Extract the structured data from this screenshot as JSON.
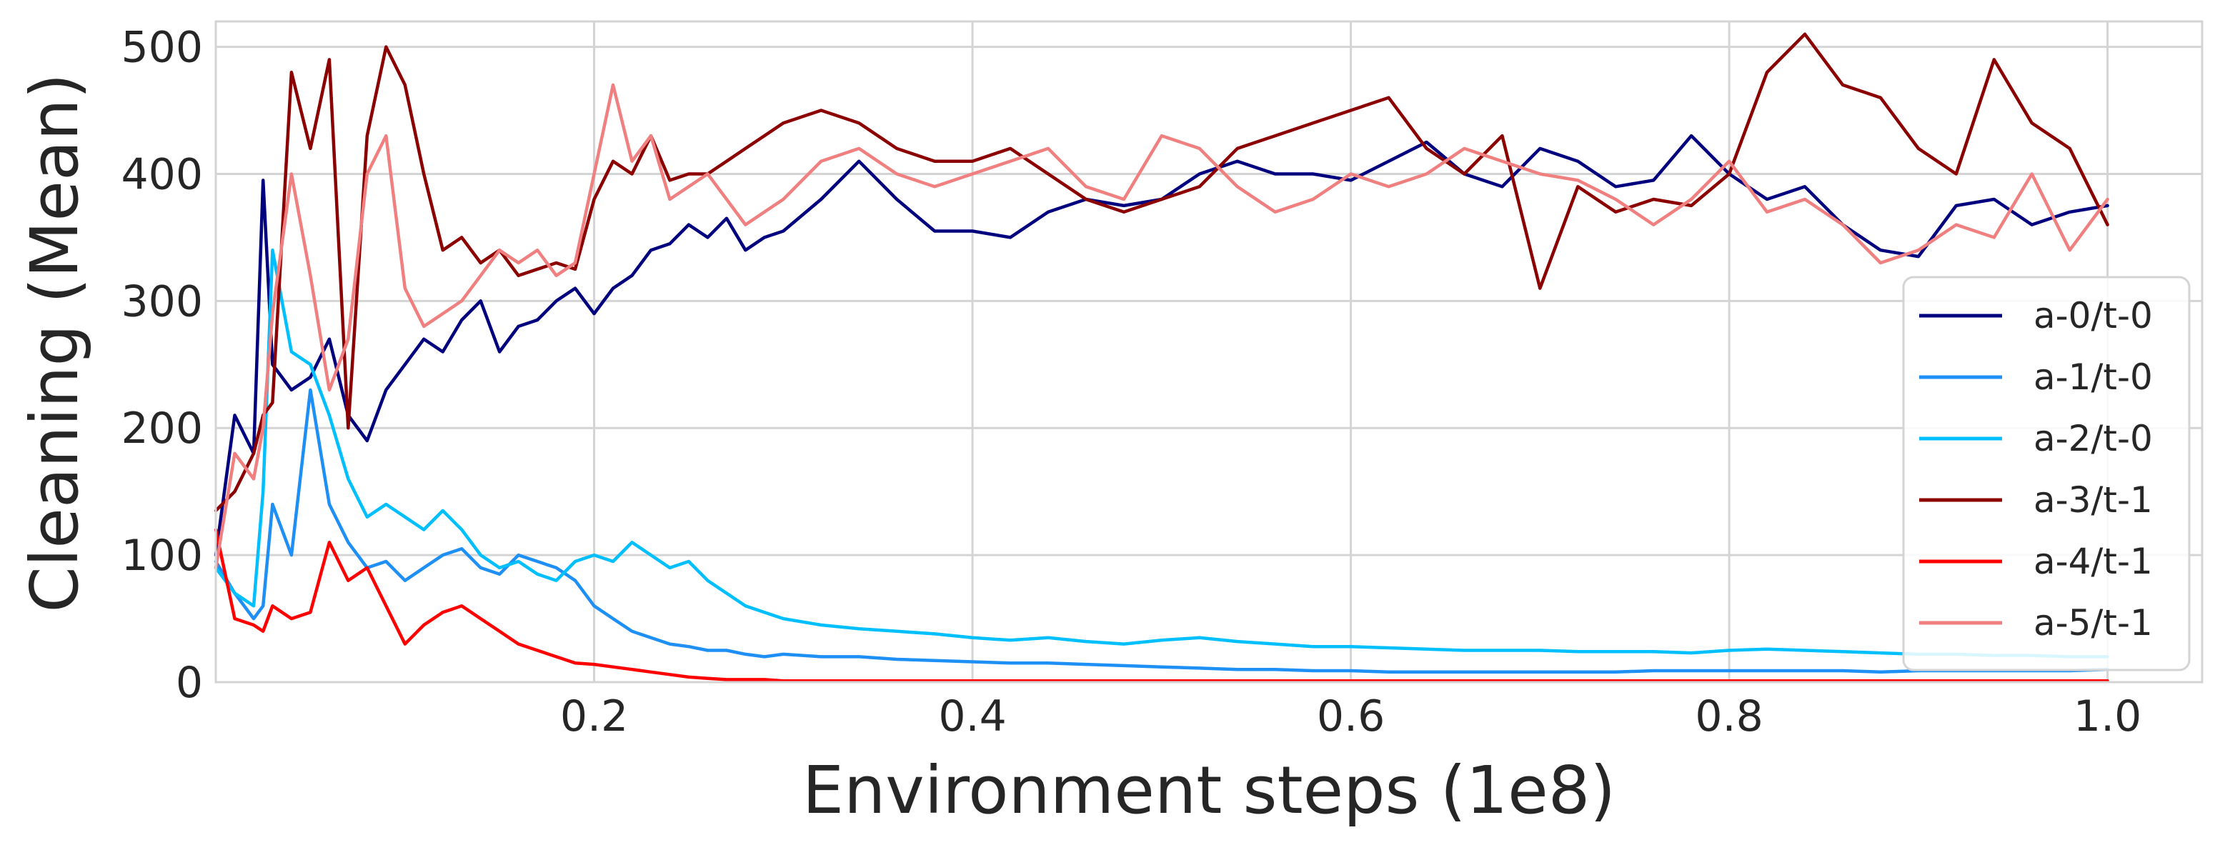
{
  "chart_data": {
    "type": "line",
    "title": "",
    "xlabel": "Environment steps (1e8)",
    "ylabel": "Cleaning (Mean)",
    "xlim": [
      0.0,
      1.05
    ],
    "ylim": [
      0,
      520
    ],
    "grid": true,
    "legend_position": "lower-right",
    "x_ticks": [
      {
        "value": 0.2,
        "label": "0.2"
      },
      {
        "value": 0.4,
        "label": "0.4"
      },
      {
        "value": 0.6,
        "label": "0.6"
      },
      {
        "value": 0.8,
        "label": "0.8"
      },
      {
        "value": 1.0,
        "label": "1.0"
      }
    ],
    "y_ticks": [
      {
        "value": 0,
        "label": "0"
      },
      {
        "value": 100,
        "label": "100"
      },
      {
        "value": 200,
        "label": "200"
      },
      {
        "value": 300,
        "label": "300"
      },
      {
        "value": 400,
        "label": "400"
      },
      {
        "value": 500,
        "label": "500"
      }
    ],
    "x": [
      0.0,
      0.01,
      0.02,
      0.025,
      0.03,
      0.04,
      0.05,
      0.06,
      0.07,
      0.08,
      0.09,
      0.1,
      0.11,
      0.12,
      0.13,
      0.14,
      0.15,
      0.16,
      0.17,
      0.18,
      0.19,
      0.2,
      0.21,
      0.22,
      0.23,
      0.24,
      0.25,
      0.26,
      0.27,
      0.28,
      0.29,
      0.3,
      0.32,
      0.34,
      0.36,
      0.38,
      0.4,
      0.42,
      0.44,
      0.46,
      0.48,
      0.5,
      0.52,
      0.54,
      0.56,
      0.58,
      0.6,
      0.62,
      0.64,
      0.66,
      0.68,
      0.7,
      0.72,
      0.74,
      0.76,
      0.78,
      0.8,
      0.82,
      0.84,
      0.86,
      0.88,
      0.9,
      0.92,
      0.94,
      0.96,
      0.98,
      1.0
    ],
    "series": [
      {
        "name": "a-0/t-0",
        "color": "#00007f",
        "values": [
          100,
          210,
          180,
          395,
          250,
          230,
          240,
          270,
          210,
          190,
          230,
          250,
          270,
          260,
          285,
          300,
          260,
          280,
          285,
          300,
          310,
          290,
          310,
          320,
          340,
          345,
          360,
          350,
          365,
          340,
          350,
          355,
          380,
          410,
          380,
          355,
          355,
          350,
          370,
          380,
          375,
          380,
          400,
          410,
          400,
          400,
          395,
          410,
          425,
          400,
          390,
          420,
          410,
          390,
          395,
          430,
          400,
          380,
          390,
          360,
          340,
          335,
          375,
          380,
          360,
          370,
          375
        ]
      },
      {
        "name": "a-1/t-0",
        "color": "#1e8ff5",
        "values": [
          95,
          70,
          50,
          60,
          140,
          100,
          230,
          140,
          110,
          90,
          95,
          80,
          90,
          100,
          105,
          90,
          85,
          100,
          95,
          90,
          80,
          60,
          50,
          40,
          35,
          30,
          28,
          25,
          25,
          22,
          20,
          22,
          20,
          20,
          18,
          17,
          16,
          15,
          15,
          14,
          13,
          12,
          11,
          10,
          10,
          9,
          9,
          8,
          8,
          8,
          8,
          8,
          8,
          8,
          9,
          9,
          9,
          9,
          9,
          9,
          8,
          9,
          9,
          9,
          9,
          9,
          10
        ]
      },
      {
        "name": "a-2/t-0",
        "color": "#00bfff",
        "values": [
          90,
          70,
          60,
          150,
          340,
          260,
          250,
          210,
          160,
          130,
          140,
          130,
          120,
          135,
          120,
          100,
          90,
          95,
          85,
          80,
          95,
          100,
          95,
          110,
          100,
          90,
          95,
          80,
          70,
          60,
          55,
          50,
          45,
          42,
          40,
          38,
          35,
          33,
          35,
          32,
          30,
          33,
          35,
          32,
          30,
          28,
          28,
          27,
          26,
          25,
          25,
          25,
          24,
          24,
          24,
          23,
          25,
          26,
          25,
          24,
          23,
          22,
          22,
          21,
          21,
          20,
          20
        ]
      },
      {
        "name": "a-3/t-1",
        "color": "#8b0000",
        "values": [
          135,
          150,
          180,
          210,
          220,
          480,
          420,
          490,
          200,
          430,
          500,
          470,
          400,
          340,
          350,
          330,
          340,
          320,
          325,
          330,
          325,
          380,
          410,
          400,
          430,
          395,
          400,
          400,
          410,
          420,
          430,
          440,
          450,
          440,
          420,
          410,
          410,
          420,
          400,
          380,
          370,
          380,
          390,
          420,
          430,
          440,
          450,
          460,
          420,
          400,
          430,
          310,
          390,
          370,
          380,
          375,
          400,
          480,
          510,
          470,
          460,
          420,
          400,
          490,
          440,
          420,
          360
        ]
      },
      {
        "name": "a-4/t-1",
        "color": "#ff0000",
        "values": [
          120,
          50,
          45,
          40,
          60,
          50,
          55,
          110,
          80,
          90,
          60,
          30,
          45,
          55,
          60,
          50,
          40,
          30,
          25,
          20,
          15,
          14,
          12,
          10,
          8,
          6,
          4,
          3,
          2,
          2,
          2,
          1,
          1,
          1,
          1,
          1,
          1,
          1,
          1,
          1,
          1,
          1,
          1,
          1,
          1,
          1,
          1,
          1,
          1,
          1,
          1,
          1,
          1,
          1,
          1,
          1,
          1,
          1,
          1,
          1,
          1,
          1,
          1,
          1,
          1,
          1,
          1
        ]
      },
      {
        "name": "a-5/t-1",
        "color": "#f08080",
        "values": [
          90,
          180,
          160,
          200,
          290,
          400,
          320,
          230,
          270,
          400,
          430,
          310,
          280,
          290,
          300,
          320,
          340,
          330,
          340,
          320,
          330,
          400,
          470,
          410,
          430,
          380,
          390,
          400,
          380,
          360,
          370,
          380,
          410,
          420,
          400,
          390,
          400,
          410,
          420,
          390,
          380,
          430,
          420,
          390,
          370,
          380,
          400,
          390,
          400,
          420,
          410,
          400,
          395,
          380,
          360,
          380,
          410,
          370,
          380,
          360,
          330,
          340,
          360,
          350,
          400,
          340,
          380
        ]
      }
    ]
  }
}
